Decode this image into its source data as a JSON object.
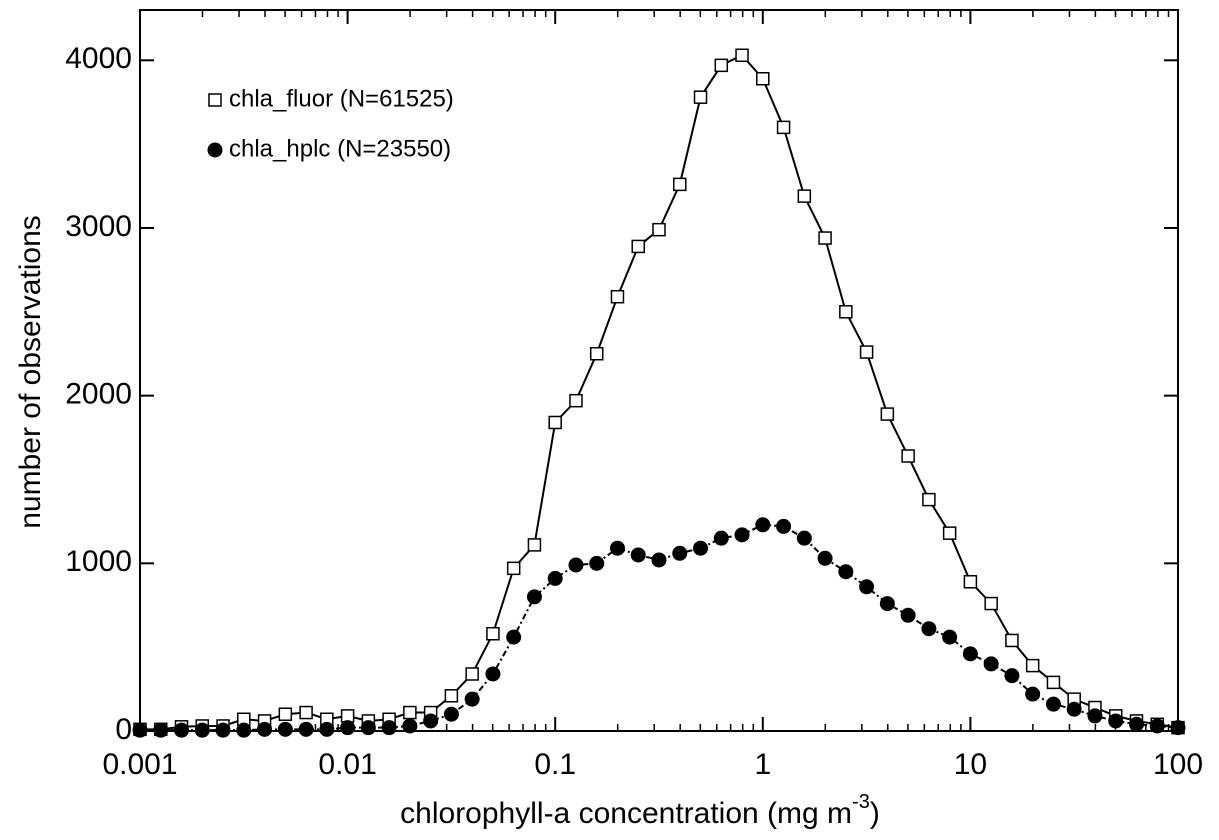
{
  "chart_data": {
    "type": "line",
    "xlabel": "chlorophyll-a concentration (mg m",
    "xlabel_superscript": "-3",
    "xlabel_end": ")",
    "ylabel": "number of observations",
    "x": [
      0.001,
      0.001259,
      0.001585,
      0.001995,
      0.002512,
      0.003162,
      0.003981,
      0.005012,
      0.00631,
      0.007943,
      0.01,
      0.01259,
      0.01585,
      0.01995,
      0.02512,
      0.03162,
      0.03981,
      0.05012,
      0.0631,
      0.07943,
      0.1,
      0.1259,
      0.1585,
      0.1995,
      0.2512,
      0.3162,
      0.3981,
      0.5012,
      0.631,
      0.7943,
      1,
      1.259,
      1.585,
      1.995,
      2.512,
      3.162,
      3.981,
      5.012,
      6.31,
      7.943,
      10,
      12.59,
      15.85,
      19.95,
      25.12,
      31.62,
      39.81,
      50.12,
      63.1,
      79.43,
      100
    ],
    "series": [
      {
        "name": "chla_fluor (N=61525)",
        "color": "#000000",
        "marker": "square",
        "dash": "solid",
        "values": [
          10,
          10,
          25,
          30,
          30,
          70,
          60,
          100,
          110,
          70,
          90,
          60,
          70,
          110,
          110,
          210,
          340,
          580,
          970,
          1110,
          1840,
          1970,
          2250,
          2590,
          2890,
          2990,
          3260,
          3780,
          3970,
          4030,
          3890,
          3600,
          3190,
          2940,
          2500,
          2260,
          1890,
          1640,
          1380,
          1180,
          890,
          760,
          540,
          390,
          290,
          190,
          140,
          90,
          60,
          40,
          20
        ]
      },
      {
        "name": "chla_hplc (N=23550)",
        "color": "#000000",
        "marker": "circle",
        "dash": "dashdot",
        "values": [
          5,
          5,
          5,
          5,
          5,
          5,
          10,
          10,
          10,
          10,
          20,
          20,
          20,
          30,
          60,
          100,
          190,
          340,
          560,
          800,
          910,
          990,
          1000,
          1090,
          1050,
          1020,
          1060,
          1090,
          1150,
          1170,
          1230,
          1220,
          1150,
          1030,
          950,
          860,
          760,
          690,
          610,
          560,
          460,
          400,
          330,
          220,
          160,
          130,
          90,
          60,
          40,
          30,
          20
        ]
      }
    ],
    "xscale": "log",
    "xlim": [
      0.001,
      100
    ],
    "xticks": [
      0.001,
      0.01,
      0.1,
      1,
      10,
      100
    ],
    "ylim": [
      0,
      4300
    ],
    "yticks": [
      0,
      1000,
      2000,
      3000,
      4000
    ],
    "legend": "upper left",
    "grid": false
  }
}
